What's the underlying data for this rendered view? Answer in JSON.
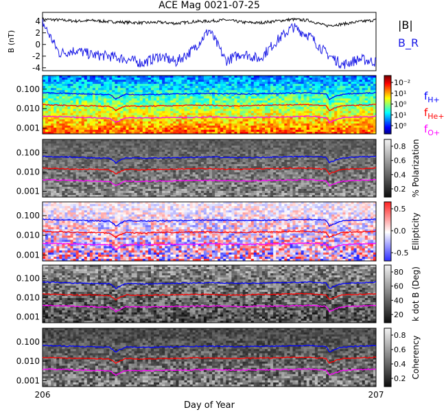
{
  "title": "ACE Mag 0021-07-25",
  "xlabel": "Day of Year",
  "colors": {
    "total_field": "#000000",
    "radial_field": "#1a1ae6",
    "f_h": "#0000ff",
    "f_he": "#ff0000",
    "f_o": "#ff00ff"
  },
  "chart_data": [
    {
      "panel": "magnetic-field",
      "type": "line",
      "ylabel": "B (nT)",
      "ylim": [
        -4.5,
        5.5
      ],
      "yticks": [
        "4",
        "2",
        "0",
        "-2",
        "-4"
      ],
      "xlim": [
        206,
        207
      ],
      "xticks": [
        "206",
        "207"
      ],
      "series": [
        {
          "name": "|B|",
          "x": [
            206.0,
            206.05,
            206.1,
            206.15,
            206.2,
            206.25,
            206.3,
            206.35,
            206.4,
            206.45,
            206.5,
            206.55,
            206.6,
            206.65,
            206.7,
            206.75,
            206.8,
            206.85,
            206.9,
            206.95,
            207.0
          ],
          "values": [
            4.3,
            4.2,
            4.0,
            4.1,
            3.9,
            3.8,
            3.7,
            3.8,
            3.6,
            3.9,
            4.0,
            4.2,
            3.8,
            3.7,
            4.0,
            4.3,
            4.1,
            3.2,
            3.5,
            3.9,
            4.2
          ]
        },
        {
          "name": "B_R",
          "x": [
            206.0,
            206.05,
            206.1,
            206.15,
            206.2,
            206.25,
            206.3,
            206.35,
            206.4,
            206.45,
            206.5,
            206.55,
            206.6,
            206.65,
            206.7,
            206.75,
            206.8,
            206.85,
            206.9,
            206.95,
            207.0
          ],
          "values": [
            3.8,
            -1.5,
            -1.0,
            -1.8,
            -2.0,
            -2.5,
            -3.2,
            -2.0,
            -3.0,
            -1.0,
            2.5,
            -2.8,
            -1.5,
            -2.5,
            0.5,
            3.0,
            1.5,
            -1.5,
            -3.5,
            -2.5,
            -3.0
          ]
        }
      ]
    },
    {
      "panel": "power-spectrum",
      "type": "heatmap",
      "yscale": "log",
      "yticks": [
        "0.100",
        "0.010",
        "0.001"
      ],
      "colorbar_ticks": [
        "10⁻²",
        "10¹",
        "10⁰",
        "10¹",
        "10⁰"
      ],
      "legend": [
        "f_H+",
        "f_He+",
        "f_O+"
      ]
    },
    {
      "panel": "polarization",
      "type": "heatmap",
      "yscale": "log",
      "yticks": [
        "0.100",
        "0.010",
        "0.001"
      ],
      "colorbar_label": "% Polarization",
      "colorbar_ticks": [
        "0.8",
        "0.6",
        "0.4",
        "0.2"
      ]
    },
    {
      "panel": "ellipticity",
      "type": "heatmap",
      "yscale": "log",
      "yticks": [
        "0.100",
        "0.010",
        "0.001"
      ],
      "colorbar_label": "Ellipticity",
      "colorbar_ticks": [
        "0.5",
        "0.0",
        "-0.5"
      ]
    },
    {
      "panel": "k-dot-b",
      "type": "heatmap",
      "yscale": "log",
      "yticks": [
        "0.100",
        "0.010",
        "0.001"
      ],
      "colorbar_label": "k dot B (Deg)",
      "colorbar_ticks": [
        "80",
        "60",
        "40",
        "20"
      ]
    },
    {
      "panel": "coherency",
      "type": "heatmap",
      "yscale": "log",
      "yticks": [
        "0.100",
        "0.010",
        "0.001"
      ],
      "colorbar_label": "Coherency",
      "colorbar_ticks": [
        "0.8",
        "0.6",
        "0.4",
        "0.2"
      ]
    }
  ],
  "gyro_lines": {
    "x": [
      206.0,
      206.05,
      206.1,
      206.15,
      206.2,
      206.22,
      206.25,
      206.3,
      206.35,
      206.4,
      206.45,
      206.5,
      206.55,
      206.6,
      206.65,
      206.7,
      206.75,
      206.8,
      206.85,
      206.86,
      206.9,
      206.95,
      207.0
    ],
    "f_h": [
      0.065,
      0.062,
      0.058,
      0.055,
      0.053,
      0.03,
      0.055,
      0.052,
      0.054,
      0.056,
      0.058,
      0.06,
      0.058,
      0.056,
      0.058,
      0.06,
      0.062,
      0.065,
      0.058,
      0.03,
      0.055,
      0.06,
      0.065
    ],
    "f_he": [
      0.016,
      0.015,
      0.014,
      0.014,
      0.013,
      0.008,
      0.014,
      0.013,
      0.014,
      0.014,
      0.015,
      0.015,
      0.014,
      0.014,
      0.015,
      0.015,
      0.016,
      0.016,
      0.014,
      0.008,
      0.014,
      0.015,
      0.016
    ],
    "f_o": [
      0.004,
      0.0038,
      0.0036,
      0.0034,
      0.0033,
      0.0019,
      0.0034,
      0.0033,
      0.0034,
      0.0035,
      0.0036,
      0.0037,
      0.0036,
      0.0035,
      0.0036,
      0.0037,
      0.0038,
      0.004,
      0.0035,
      0.0019,
      0.0034,
      0.0037,
      0.004
    ]
  }
}
